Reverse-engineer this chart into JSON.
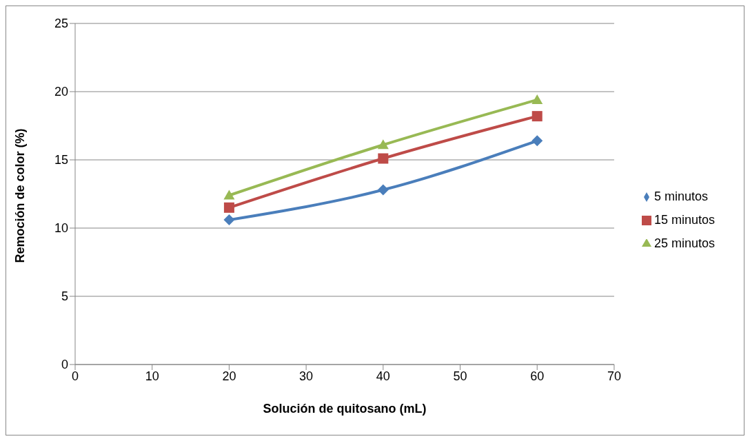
{
  "chart_data": {
    "type": "line",
    "xlabel": "Solución de quitosano (mL)",
    "ylabel": "Remoción de color (%)",
    "x": [
      20,
      40,
      60
    ],
    "series": [
      {
        "name": "5 minutos",
        "color": "#4a7ebb",
        "values": [
          10.6,
          12.8,
          16.4
        ],
        "marker": "diamond"
      },
      {
        "name": "15 minutos",
        "color": "#be4b48",
        "values": [
          11.5,
          15.1,
          18.2
        ],
        "marker": "square"
      },
      {
        "name": "25 minutos",
        "color": "#98b954",
        "values": [
          12.4,
          16.1,
          19.4
        ],
        "marker": "triangle"
      }
    ],
    "xlim": [
      0,
      70
    ],
    "xticks": [
      0,
      10,
      20,
      30,
      40,
      50,
      60,
      70
    ],
    "ylim": [
      0,
      25
    ],
    "yticks": [
      0,
      5,
      10,
      15,
      20,
      25
    ],
    "grid": "y",
    "legend": "right",
    "line_style": "solid"
  }
}
